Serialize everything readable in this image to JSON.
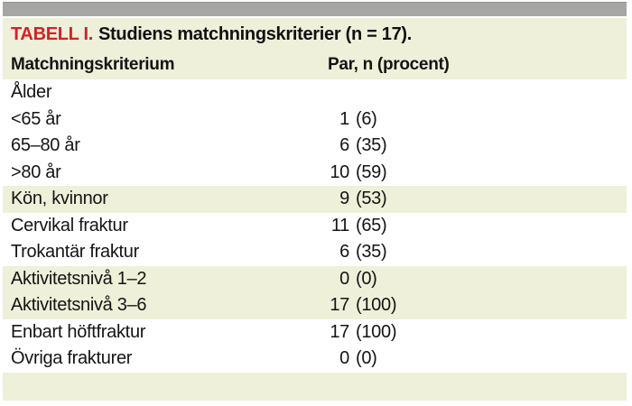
{
  "table": {
    "title_prefix": "TABELL I.",
    "title_rest": "Studiens matchningskriterier (n = 17).",
    "columns": {
      "criterion": "Matchningskriterium",
      "value": "Par, n (procent)"
    },
    "rows": [
      {
        "label": "Ålder",
        "n": "",
        "p": ""
      },
      {
        "label": "<65 år",
        "n": "1",
        "p": "(6)"
      },
      {
        "label": "65–80 år",
        "n": "6",
        "p": "(35)"
      },
      {
        "label": ">80 år",
        "n": "10",
        "p": "(59)"
      },
      {
        "label": "Kön, kvinnor",
        "n": "9",
        "p": "(53)"
      },
      {
        "label": "Cervikal fraktur",
        "n": "11",
        "p": "(65)"
      },
      {
        "label": "Trokantär fraktur",
        "n": "6",
        "p": "(35)"
      },
      {
        "label": "Aktivitetsnivå 1–2",
        "n": "0",
        "p": "(0)"
      },
      {
        "label": "Aktivitetsnivå 3–6",
        "n": "17",
        "p": "(100)"
      },
      {
        "label": "Enbart höftfraktur",
        "n": "17",
        "p": "(100)"
      },
      {
        "label": "Övriga frakturer",
        "n": "0",
        "p": "(0)"
      }
    ]
  },
  "colors": {
    "accent_red": "#d42027",
    "row_shade_beige": "#eef0d9",
    "top_bar_gray": "#a6a6a4",
    "text": "#141414"
  },
  "chart_data": {
    "type": "table",
    "title": "TABELL I. Studiens matchningskriterier (n = 17).",
    "columns": [
      "Matchningskriterium",
      "Par, n (procent)"
    ],
    "rows": [
      [
        "Ålder",
        ""
      ],
      [
        "<65 år",
        "1 (6)"
      ],
      [
        "65–80 år",
        "6 (35)"
      ],
      [
        ">80 år",
        "10 (59)"
      ],
      [
        "Kön, kvinnor",
        "9 (53)"
      ],
      [
        "Cervikal fraktur",
        "11 (65)"
      ],
      [
        "Trokantär fraktur",
        "6 (35)"
      ],
      [
        "Aktivitetsnivå 1–2",
        "0 (0)"
      ],
      [
        "Aktivitetsnivå 3–6",
        "17 (100)"
      ],
      [
        "Enbart höftfraktur",
        "17 (100)"
      ],
      [
        "Övriga frakturer",
        "0 (0)"
      ]
    ]
  }
}
